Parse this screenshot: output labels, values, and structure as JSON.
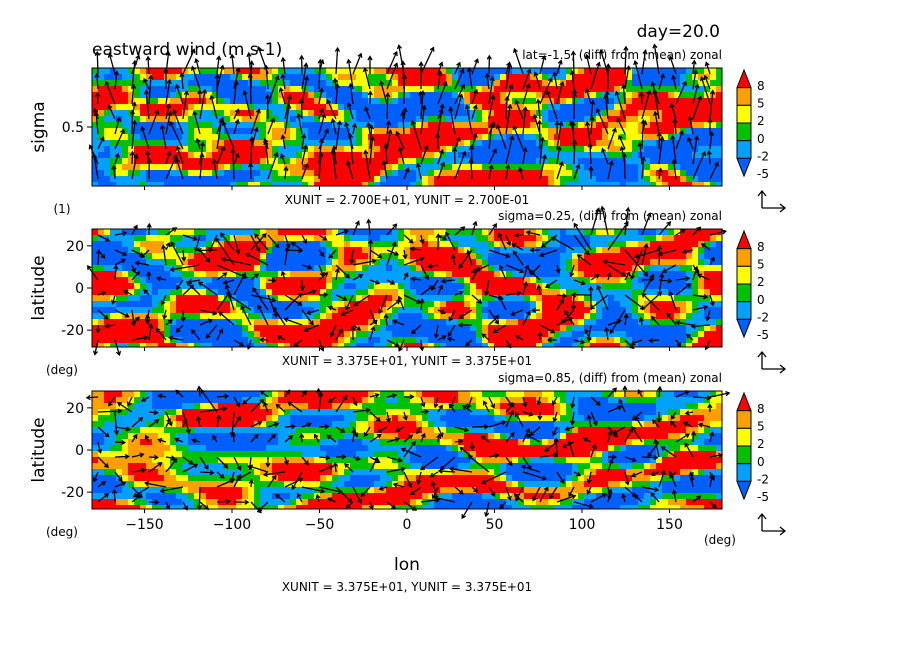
{
  "figure": {
    "title": "eastward wind (m s-1)",
    "day_label": "day=20.0",
    "xlabel": "lon",
    "x_unit_label": "(deg)",
    "bottom_unit_note": "XUNIT = 3.375E+01, YUNIT = 3.375E+01"
  },
  "colors": {
    "levels": [
      "#0060ff",
      "#00a0ff",
      "#00c000",
      "#ffff00",
      "#ffa000",
      "#ff0000"
    ],
    "vector": "#000000"
  },
  "chart_data": [
    {
      "type": "heatmap",
      "subtitle": "lat=-1.5, (diff) from (mean) zonal",
      "ylabel": "sigma",
      "y_unit_label": "(1)",
      "unit_note": "XUNIT = 2.700E+01, YUNIT = 2.700E-01",
      "ylim": [
        0,
        1
      ],
      "yticks": [
        0.5
      ],
      "ytick_labels": [
        "0.5"
      ],
      "colorbar": {
        "levels": [
          "8",
          "5",
          "2",
          "0",
          "-2",
          "-5"
        ]
      },
      "overlay": "wind vectors",
      "field_seed": 11
    },
    {
      "type": "heatmap",
      "subtitle": "sigma=0.25, (diff) from (mean) zonal",
      "ylabel": "latitude",
      "y_unit_label": "(deg)",
      "unit_note": "XUNIT = 3.375E+01, YUNIT = 3.375E+01",
      "ylim": [
        -28,
        28
      ],
      "yticks": [
        20,
        0,
        -20
      ],
      "ytick_labels": [
        "20",
        "0",
        "-20"
      ],
      "colorbar": {
        "levels": [
          "8",
          "5",
          "2",
          "0",
          "-2",
          "-5"
        ]
      },
      "overlay": "wind vectors",
      "field_seed": 23
    },
    {
      "type": "heatmap",
      "subtitle": "sigma=0.85, (diff) from (mean) zonal",
      "ylabel": "latitude",
      "y_unit_label": "(deg)",
      "ylim": [
        -28,
        28
      ],
      "yticks": [
        20,
        0,
        -20
      ],
      "ytick_labels": [
        "20",
        "0",
        "-20"
      ],
      "xticks": [
        -150,
        -100,
        -50,
        0,
        50,
        100,
        150
      ],
      "xtick_labels": [
        "−150",
        "−100",
        "−50",
        "0",
        "50",
        "100",
        "150"
      ],
      "colorbar": {
        "levels": [
          "8",
          "5",
          "2",
          "0",
          "-2",
          "-5"
        ]
      },
      "overlay": "wind vectors",
      "field_seed": 37
    }
  ]
}
